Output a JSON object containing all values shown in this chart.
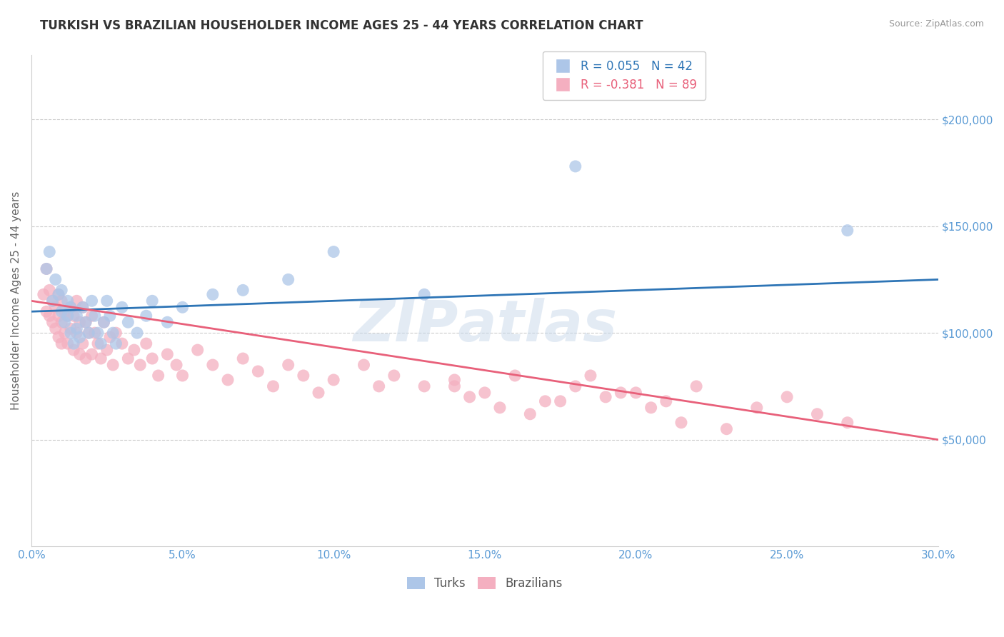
{
  "title": "TURKISH VS BRAZILIAN HOUSEHOLDER INCOME AGES 25 - 44 YEARS CORRELATION CHART",
  "source": "Source: ZipAtlas.com",
  "ylabel": "Householder Income Ages 25 - 44 years",
  "xlabel": "",
  "xlim": [
    0.0,
    0.3
  ],
  "ylim": [
    0,
    230000
  ],
  "yticks": [
    50000,
    100000,
    150000,
    200000
  ],
  "ytick_labels": [
    "$50,000",
    "$100,000",
    "$150,000",
    "$200,000"
  ],
  "xticks": [
    0.0,
    0.05,
    0.1,
    0.15,
    0.2,
    0.25,
    0.3
  ],
  "xtick_labels": [
    "0.0%",
    "5.0%",
    "10.0%",
    "15.0%",
    "20.0%",
    "25.0%",
    "30.0%"
  ],
  "title_color": "#333333",
  "axis_color": "#5b9bd5",
  "background_color": "#ffffff",
  "grid_color": "#cccccc",
  "turks_color": "#adc6e8",
  "brazilians_color": "#f4afc0",
  "turks_line_color": "#2e75b6",
  "brazilians_line_color": "#e8607a",
  "turks_R": 0.055,
  "turks_N": 42,
  "brazilians_R": -0.381,
  "brazilians_N": 89,
  "legend_label_turks": "Turks",
  "legend_label_brazilians": "Brazilians",
  "turks_x": [
    0.005,
    0.006,
    0.007,
    0.008,
    0.009,
    0.01,
    0.01,
    0.011,
    0.012,
    0.012,
    0.013,
    0.013,
    0.014,
    0.015,
    0.015,
    0.016,
    0.017,
    0.018,
    0.019,
    0.02,
    0.021,
    0.022,
    0.023,
    0.024,
    0.025,
    0.026,
    0.027,
    0.028,
    0.03,
    0.032,
    0.035,
    0.038,
    0.04,
    0.045,
    0.05,
    0.06,
    0.07,
    0.085,
    0.1,
    0.13,
    0.18,
    0.27
  ],
  "turks_y": [
    130000,
    138000,
    115000,
    125000,
    118000,
    110000,
    120000,
    105000,
    115000,
    108000,
    100000,
    112000,
    95000,
    108000,
    102000,
    98000,
    112000,
    105000,
    100000,
    115000,
    108000,
    100000,
    95000,
    105000,
    115000,
    108000,
    100000,
    95000,
    112000,
    105000,
    100000,
    108000,
    115000,
    105000,
    112000,
    118000,
    120000,
    125000,
    138000,
    118000,
    178000,
    148000
  ],
  "brazilians_x": [
    0.004,
    0.005,
    0.005,
    0.006,
    0.006,
    0.007,
    0.007,
    0.008,
    0.008,
    0.009,
    0.009,
    0.009,
    0.01,
    0.01,
    0.01,
    0.011,
    0.011,
    0.012,
    0.012,
    0.013,
    0.013,
    0.014,
    0.014,
    0.015,
    0.015,
    0.016,
    0.016,
    0.017,
    0.017,
    0.018,
    0.018,
    0.019,
    0.02,
    0.02,
    0.021,
    0.022,
    0.023,
    0.024,
    0.025,
    0.026,
    0.027,
    0.028,
    0.03,
    0.032,
    0.034,
    0.036,
    0.038,
    0.04,
    0.042,
    0.045,
    0.048,
    0.05,
    0.055,
    0.06,
    0.065,
    0.07,
    0.075,
    0.08,
    0.085,
    0.09,
    0.095,
    0.1,
    0.11,
    0.115,
    0.12,
    0.13,
    0.14,
    0.15,
    0.16,
    0.17,
    0.18,
    0.185,
    0.19,
    0.2,
    0.21,
    0.22,
    0.24,
    0.25,
    0.26,
    0.27,
    0.14,
    0.145,
    0.155,
    0.165,
    0.175,
    0.195,
    0.205,
    0.215,
    0.23
  ],
  "brazilians_y": [
    118000,
    130000,
    110000,
    120000,
    108000,
    115000,
    105000,
    112000,
    102000,
    118000,
    108000,
    98000,
    115000,
    105000,
    95000,
    110000,
    100000,
    108000,
    95000,
    112000,
    102000,
    108000,
    92000,
    115000,
    100000,
    105000,
    90000,
    112000,
    95000,
    105000,
    88000,
    100000,
    108000,
    90000,
    100000,
    95000,
    88000,
    105000,
    92000,
    98000,
    85000,
    100000,
    95000,
    88000,
    92000,
    85000,
    95000,
    88000,
    80000,
    90000,
    85000,
    80000,
    92000,
    85000,
    78000,
    88000,
    82000,
    75000,
    85000,
    80000,
    72000,
    78000,
    85000,
    75000,
    80000,
    75000,
    78000,
    72000,
    80000,
    68000,
    75000,
    80000,
    70000,
    72000,
    68000,
    75000,
    65000,
    70000,
    62000,
    58000,
    75000,
    70000,
    65000,
    62000,
    68000,
    72000,
    65000,
    58000,
    55000
  ]
}
